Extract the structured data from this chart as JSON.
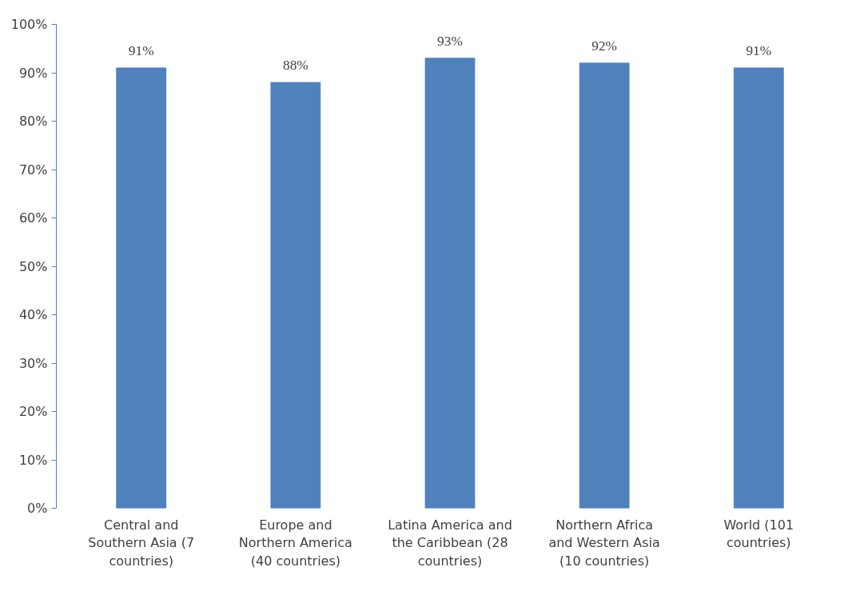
{
  "chart_data": {
    "type": "bar",
    "categories": [
      "Central and Southern Asia (7 countries)",
      "Europe and Northern America (40 countries)",
      "Latina America and the Caribbean (28 countries)",
      "Northern Africa and Western Asia (10 countries)",
      "World (101 countries)"
    ],
    "values": [
      91,
      88,
      93,
      92,
      91
    ],
    "color": "#4f81bd",
    "value_labels": [
      "91%",
      "88%",
      "93%",
      "92%",
      "91%"
    ],
    "ylim": [
      0,
      100
    ],
    "yticks": [
      {
        "value": 0,
        "label": "0%"
      },
      {
        "value": 10,
        "label": "10%"
      },
      {
        "value": 20,
        "label": "20%"
      },
      {
        "value": 30,
        "label": "30%"
      },
      {
        "value": 40,
        "label": "40%"
      },
      {
        "value": 50,
        "label": "50%"
      },
      {
        "value": 60,
        "label": "60%"
      },
      {
        "value": 70,
        "label": "70%"
      },
      {
        "value": 80,
        "label": "80%"
      },
      {
        "value": 90,
        "label": "90%"
      },
      {
        "value": 100,
        "label": "100%"
      }
    ],
    "grid": false
  }
}
